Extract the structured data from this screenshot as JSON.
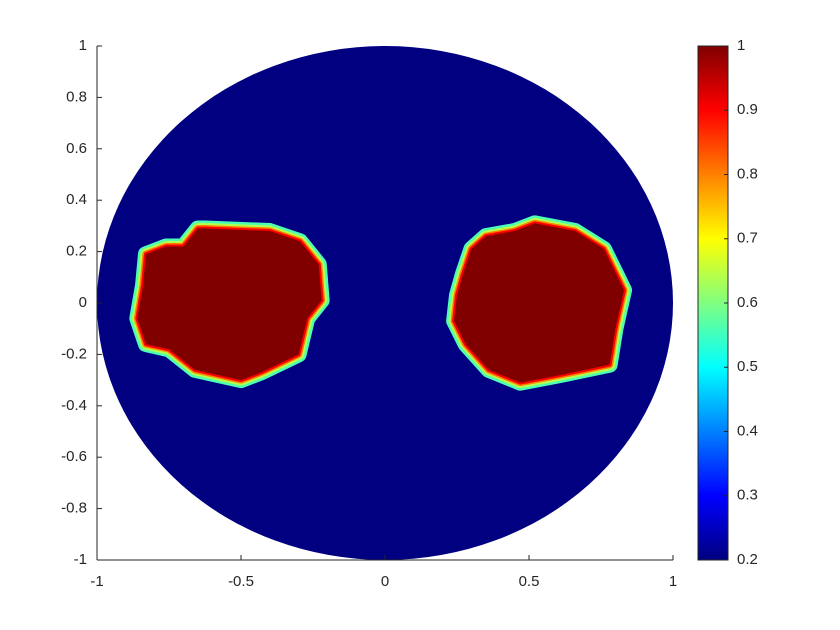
{
  "chart_data": {
    "type": "field",
    "xlim": [
      -1,
      1
    ],
    "ylim": [
      -1,
      1
    ],
    "xticks": [
      -1,
      -0.5,
      0,
      0.5,
      1
    ],
    "yticks": [
      -1,
      -0.8,
      -0.6,
      -0.4,
      -0.2,
      0,
      0.2,
      0.4,
      0.6,
      0.8,
      1
    ],
    "clim": [
      0.2,
      1
    ],
    "cticks": [
      0.2,
      0.3,
      0.4,
      0.5,
      0.6,
      0.7,
      0.8,
      0.9,
      1
    ],
    "colormap": [
      "#000080",
      "#0000ff",
      "#0080ff",
      "#00ffff",
      "#80ff80",
      "#ffff00",
      "#ff8000",
      "#ff0000",
      "#800000"
    ],
    "background_value": 0.2,
    "regions": [
      {
        "value": 1,
        "x": [
          -0.625,
          -0.4,
          -0.295,
          -0.23,
          -0.22,
          -0.27,
          -0.3,
          -0.43,
          -0.5,
          -0.66,
          -0.75,
          -0.83,
          -0.86,
          -0.84,
          -0.83,
          -0.76,
          -0.7,
          -0.65
        ],
        "y": [
          0.29,
          0.28,
          0.24,
          0.15,
          0.01,
          -0.06,
          -0.2,
          -0.27,
          -0.3,
          -0.26,
          -0.18,
          -0.16,
          -0.06,
          0.07,
          0.19,
          0.22,
          0.22,
          0.29
        ]
      },
      {
        "value": 1,
        "x": [
          0.35,
          0.45,
          0.52,
          0.66,
          0.76,
          0.83,
          0.8,
          0.78,
          0.61,
          0.47,
          0.36,
          0.28,
          0.24,
          0.25,
          0.27,
          0.3
        ],
        "y": [
          0.26,
          0.28,
          0.31,
          0.28,
          0.21,
          0.05,
          -0.1,
          -0.24,
          -0.28,
          -0.31,
          -0.26,
          -0.16,
          -0.07,
          0.03,
          0.11,
          0.21
        ]
      }
    ]
  }
}
